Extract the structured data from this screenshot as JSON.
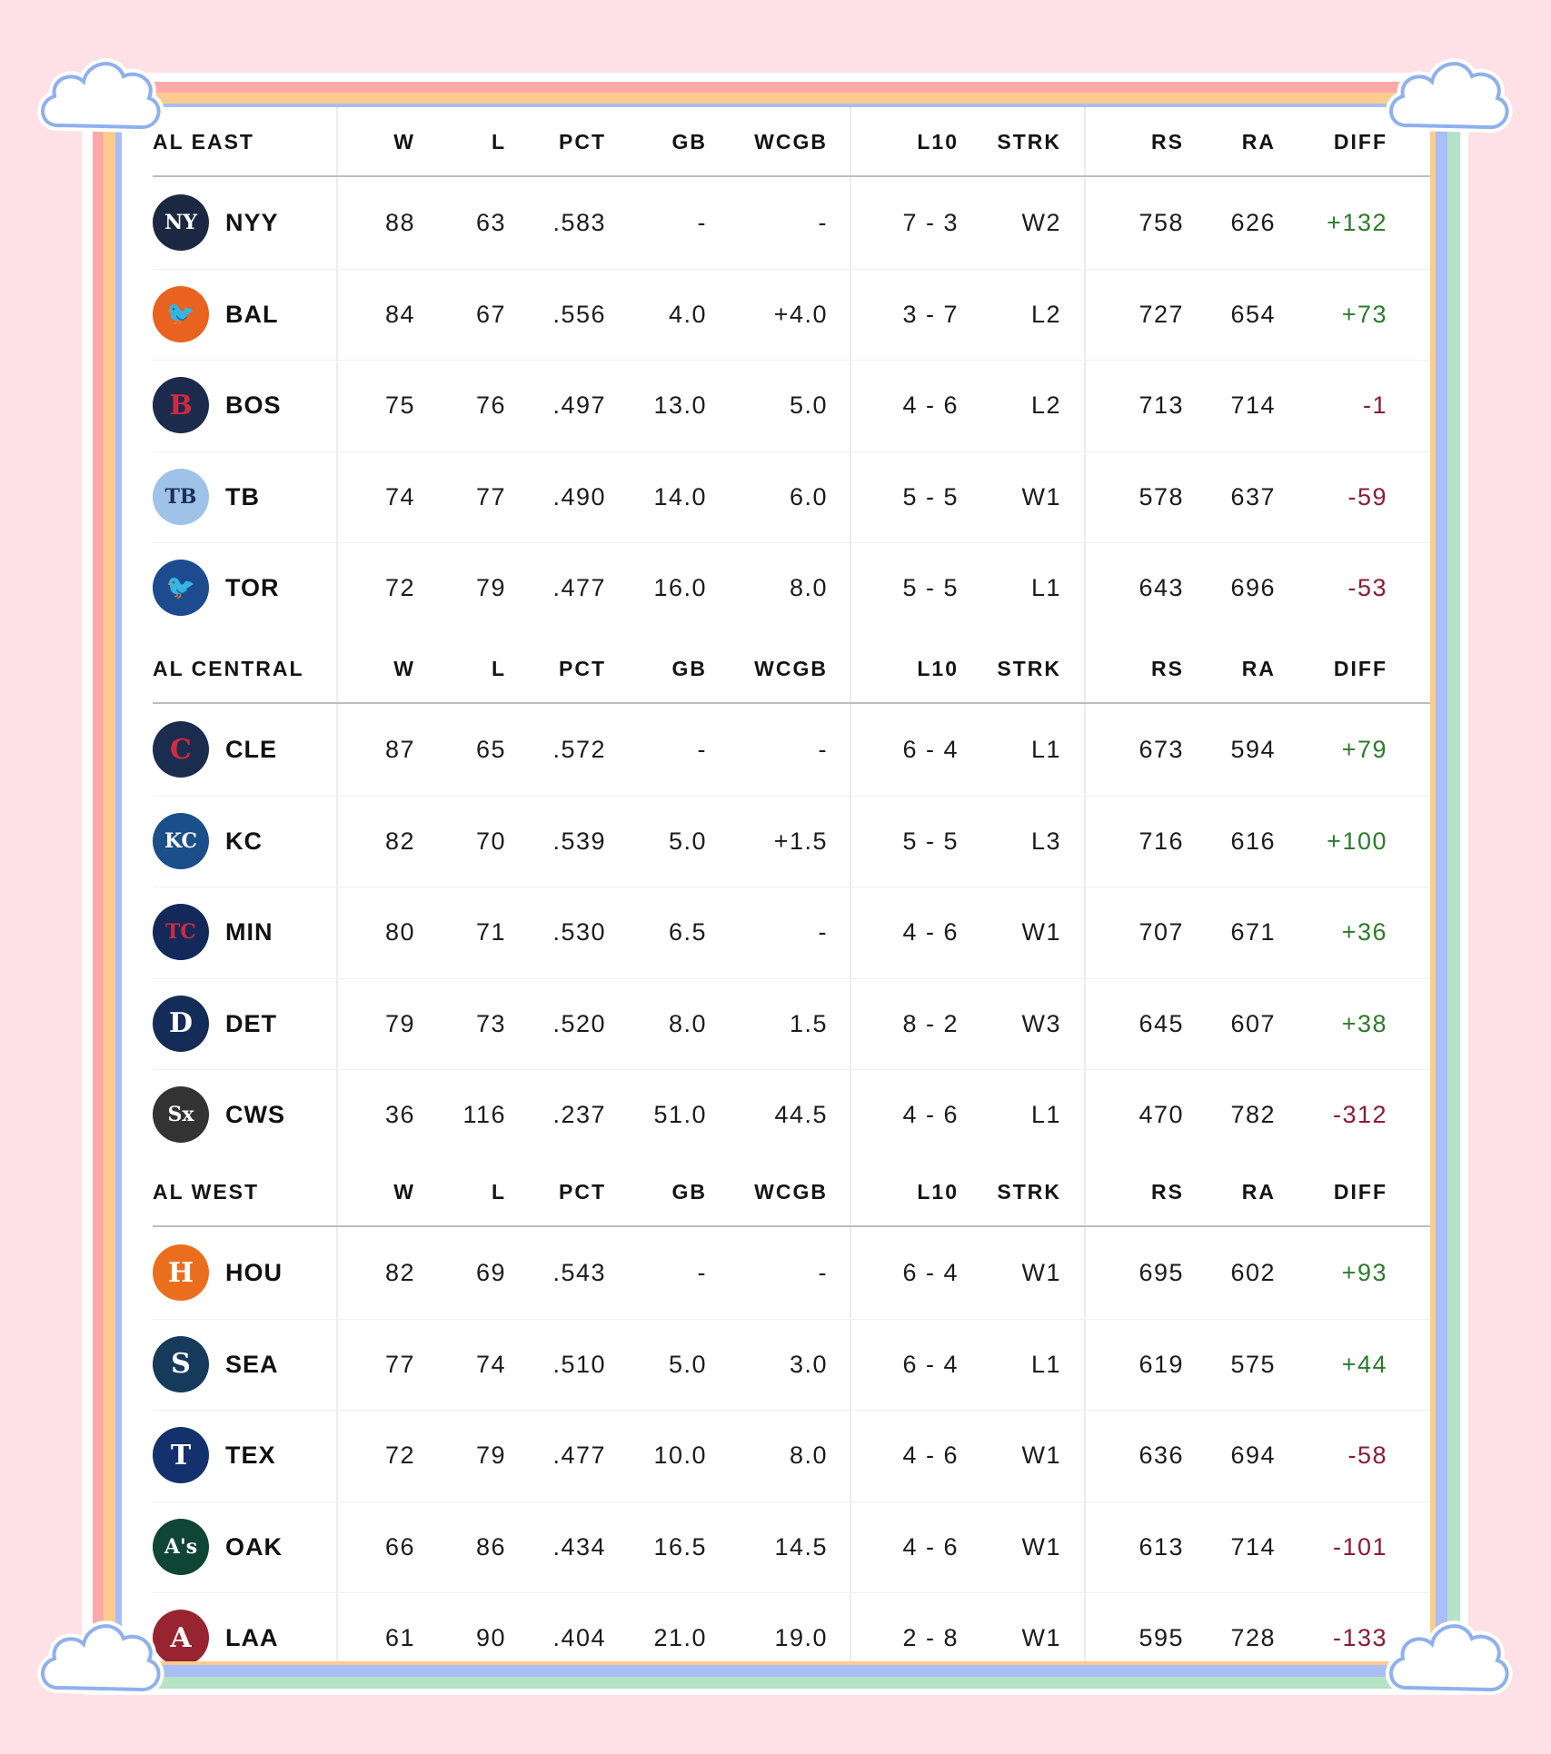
{
  "columns": [
    "W",
    "L",
    "PCT",
    "GB",
    "WCGB",
    "L10",
    "STRK",
    "RS",
    "RA",
    "DIFF"
  ],
  "colors": {
    "background": "#fde1e6",
    "stripe_pink": "#fda9a9",
    "stripe_peach": "#fdcc8c",
    "stripe_blue": "#a9bdf7",
    "stripe_green": "#b4e3c6",
    "cloud_outline": "#8fb0ee",
    "diff_positive": "#2d7a2d",
    "diff_negative": "#8a1c33"
  },
  "divisions": [
    {
      "name": "AL EAST",
      "teams": [
        {
          "abbr": "NYY",
          "logo": "yankees-logo",
          "logo_color": "#1c2841",
          "logo_glyph": "NY",
          "W": "88",
          "L": "63",
          "PCT": ".583",
          "GB": "-",
          "WCGB": "-",
          "L10": "7 - 3",
          "STRK": "W2",
          "RS": "758",
          "RA": "626",
          "DIFF": "+132"
        },
        {
          "abbr": "BAL",
          "logo": "orioles-logo",
          "logo_color": "#e9621f",
          "logo_glyph": "🐦",
          "W": "84",
          "L": "67",
          "PCT": ".556",
          "GB": "4.0",
          "WCGB": "+4.0",
          "L10": "3 - 7",
          "STRK": "L2",
          "RS": "727",
          "RA": "654",
          "DIFF": "+73"
        },
        {
          "abbr": "BOS",
          "logo": "red-sox-logo",
          "logo_color": "#1c2a4e",
          "logo_glyph": "B",
          "W": "75",
          "L": "76",
          "PCT": ".497",
          "GB": "13.0",
          "WCGB": "5.0",
          "L10": "4 - 6",
          "STRK": "L2",
          "RS": "713",
          "RA": "714",
          "DIFF": "-1"
        },
        {
          "abbr": "TB",
          "logo": "rays-logo",
          "logo_color": "#9fc3e8",
          "logo_glyph": "TB",
          "W": "74",
          "L": "77",
          "PCT": ".490",
          "GB": "14.0",
          "WCGB": "6.0",
          "L10": "5 - 5",
          "STRK": "W1",
          "RS": "578",
          "RA": "637",
          "DIFF": "-59"
        },
        {
          "abbr": "TOR",
          "logo": "blue-jays-logo",
          "logo_color": "#1d4b8f",
          "logo_glyph": "🐦",
          "W": "72",
          "L": "79",
          "PCT": ".477",
          "GB": "16.0",
          "WCGB": "8.0",
          "L10": "5 - 5",
          "STRK": "L1",
          "RS": "643",
          "RA": "696",
          "DIFF": "-53"
        }
      ]
    },
    {
      "name": "AL CENTRAL",
      "teams": [
        {
          "abbr": "CLE",
          "logo": "guardians-logo",
          "logo_color": "#1a2d4f",
          "logo_glyph": "C",
          "W": "87",
          "L": "65",
          "PCT": ".572",
          "GB": "-",
          "WCGB": "-",
          "L10": "6 - 4",
          "STRK": "L1",
          "RS": "673",
          "RA": "594",
          "DIFF": "+79"
        },
        {
          "abbr": "KC",
          "logo": "royals-logo",
          "logo_color": "#1b4f8a",
          "logo_glyph": "KC",
          "W": "82",
          "L": "70",
          "PCT": ".539",
          "GB": "5.0",
          "WCGB": "+1.5",
          "L10": "5 - 5",
          "STRK": "L3",
          "RS": "716",
          "RA": "616",
          "DIFF": "+100"
        },
        {
          "abbr": "MIN",
          "logo": "twins-logo",
          "logo_color": "#12295a",
          "logo_glyph": "TC",
          "W": "80",
          "L": "71",
          "PCT": ".530",
          "GB": "6.5",
          "WCGB": "-",
          "L10": "4 - 6",
          "STRK": "W1",
          "RS": "707",
          "RA": "671",
          "DIFF": "+36"
        },
        {
          "abbr": "DET",
          "logo": "tigers-logo",
          "logo_color": "#142c58",
          "logo_glyph": "D",
          "W": "79",
          "L": "73",
          "PCT": ".520",
          "GB": "8.0",
          "WCGB": "1.5",
          "L10": "8 - 2",
          "STRK": "W3",
          "RS": "645",
          "RA": "607",
          "DIFF": "+38"
        },
        {
          "abbr": "CWS",
          "logo": "white-sox-logo",
          "logo_color": "#333333",
          "logo_glyph": "Sx",
          "W": "36",
          "L": "116",
          "PCT": ".237",
          "GB": "51.0",
          "WCGB": "44.5",
          "L10": "4 - 6",
          "STRK": "L1",
          "RS": "470",
          "RA": "782",
          "DIFF": "-312"
        }
      ]
    },
    {
      "name": "AL WEST",
      "teams": [
        {
          "abbr": "HOU",
          "logo": "astros-logo",
          "logo_color": "#eb6e1f",
          "logo_glyph": "H",
          "W": "82",
          "L": "69",
          "PCT": ".543",
          "GB": "-",
          "WCGB": "-",
          "L10": "6 - 4",
          "STRK": "W1",
          "RS": "695",
          "RA": "602",
          "DIFF": "+93"
        },
        {
          "abbr": "SEA",
          "logo": "mariners-logo",
          "logo_color": "#153a5a",
          "logo_glyph": "S",
          "W": "77",
          "L": "74",
          "PCT": ".510",
          "GB": "5.0",
          "WCGB": "3.0",
          "L10": "6 - 4",
          "STRK": "L1",
          "RS": "619",
          "RA": "575",
          "DIFF": "+44"
        },
        {
          "abbr": "TEX",
          "logo": "rangers-logo",
          "logo_color": "#13326d",
          "logo_glyph": "T",
          "W": "72",
          "L": "79",
          "PCT": ".477",
          "GB": "10.0",
          "WCGB": "8.0",
          "L10": "4 - 6",
          "STRK": "W1",
          "RS": "636",
          "RA": "694",
          "DIFF": "-58"
        },
        {
          "abbr": "OAK",
          "logo": "athletics-logo",
          "logo_color": "#0f4534",
          "logo_glyph": "A's",
          "W": "66",
          "L": "86",
          "PCT": ".434",
          "GB": "16.5",
          "WCGB": "14.5",
          "L10": "4 - 6",
          "STRK": "W1",
          "RS": "613",
          "RA": "714",
          "DIFF": "-101"
        },
        {
          "abbr": "LAA",
          "logo": "angels-logo",
          "logo_color": "#98242f",
          "logo_glyph": "A",
          "W": "61",
          "L": "90",
          "PCT": ".404",
          "GB": "21.0",
          "WCGB": "19.0",
          "L10": "2 - 8",
          "STRK": "W1",
          "RS": "595",
          "RA": "728",
          "DIFF": "-133"
        }
      ]
    }
  ]
}
